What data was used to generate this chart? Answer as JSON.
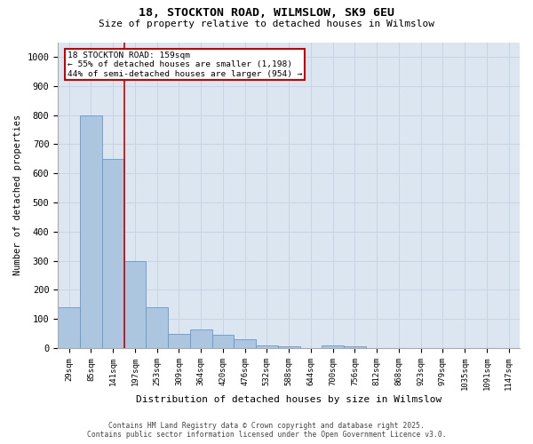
{
  "title1": "18, STOCKTON ROAD, WILMSLOW, SK9 6EU",
  "title2": "Size of property relative to detached houses in Wilmslow",
  "xlabel": "Distribution of detached houses by size in Wilmslow",
  "ylabel": "Number of detached properties",
  "bin_labels": [
    "29sqm",
    "85sqm",
    "141sqm",
    "197sqm",
    "253sqm",
    "309sqm",
    "364sqm",
    "420sqm",
    "476sqm",
    "532sqm",
    "588sqm",
    "644sqm",
    "700sqm",
    "756sqm",
    "812sqm",
    "868sqm",
    "923sqm",
    "979sqm",
    "1035sqm",
    "1091sqm",
    "1147sqm"
  ],
  "bar_values": [
    140,
    800,
    650,
    300,
    140,
    50,
    65,
    45,
    30,
    10,
    5,
    0,
    10,
    5,
    0,
    0,
    0,
    0,
    0,
    0,
    0
  ],
  "bar_color": "#adc6e0",
  "bar_edge_color": "#6699cc",
  "property_line_x": 2.5,
  "annotation_text": "18 STOCKTON ROAD: 159sqm\n← 55% of detached houses are smaller (1,198)\n44% of semi-detached houses are larger (954) →",
  "annotation_box_color": "#ffffff",
  "annotation_box_edge": "#cc0000",
  "vline_color": "#cc0000",
  "ylim": [
    0,
    1050
  ],
  "yticks": [
    0,
    100,
    200,
    300,
    400,
    500,
    600,
    700,
    800,
    900,
    1000
  ],
  "grid_color": "#c8d4e4",
  "background_color": "#dce6f0",
  "footer_line1": "Contains HM Land Registry data © Crown copyright and database right 2025.",
  "footer_line2": "Contains public sector information licensed under the Open Government Licence v3.0."
}
